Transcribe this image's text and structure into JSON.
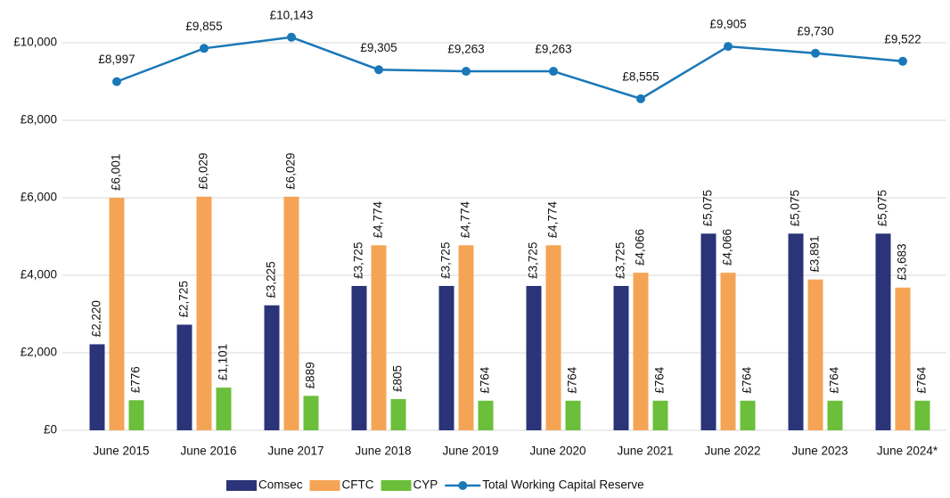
{
  "chart_data": {
    "type": "bar",
    "categories": [
      "June 2015",
      "June 2016",
      "June 2017",
      "June 2018",
      "June 2019",
      "June 2020",
      "June 2021",
      "June 2022",
      "June 2023",
      "June 2024*"
    ],
    "series": [
      {
        "name": "Comsec",
        "type": "bar",
        "color": "#2b3478",
        "values": [
          2220,
          2725,
          3225,
          3725,
          3725,
          3725,
          3725,
          5075,
          5075,
          5075
        ],
        "value_labels": [
          "£2,220",
          "£2,725",
          "£3,225",
          "£3,725",
          "£3,725",
          "£3,725",
          "£3,725",
          "£5,075",
          "£5,075",
          "£5,075"
        ]
      },
      {
        "name": "CFTC",
        "type": "bar",
        "color": "#f5a455",
        "values": [
          6001,
          6029,
          6029,
          4774,
          4774,
          4774,
          4066,
          4066,
          3891,
          3683
        ],
        "value_labels": [
          "£6,001",
          "£6,029",
          "£6,029",
          "£4,774",
          "£4,774",
          "£4,774",
          "£4,066",
          "£4,066",
          "£3,891",
          "£3,683"
        ]
      },
      {
        "name": "CYP",
        "type": "bar",
        "color": "#6bbf3a",
        "values": [
          776,
          1101,
          889,
          805,
          764,
          764,
          764,
          764,
          764,
          764
        ],
        "value_labels": [
          "£776",
          "£1,101",
          "£889",
          "£805",
          "£764",
          "£764",
          "£764",
          "£764",
          "£764",
          "£764"
        ]
      },
      {
        "name": "Total Working Capital Reserve",
        "type": "line",
        "color": "#1a78b8",
        "values": [
          8997,
          9855,
          10143,
          9305,
          9263,
          9263,
          8555,
          9905,
          9730,
          9522
        ],
        "value_labels": [
          "£8,997",
          "£9,855",
          "£10,143",
          "£9,305",
          "£9,263",
          "£9,263",
          "£8,555",
          "£9,905",
          "£9,730",
          "£9,522"
        ]
      }
    ],
    "ylim": [
      0,
      11000
    ],
    "yticks": [
      {
        "value": 0,
        "label": "£0"
      },
      {
        "value": 2000,
        "label": "£2,000"
      },
      {
        "value": 4000,
        "label": "£4,000"
      },
      {
        "value": 6000,
        "label": "£6,000"
      },
      {
        "value": 8000,
        "label": "£8,000"
      },
      {
        "value": 10000,
        "label": "£10,000"
      }
    ],
    "grid": true,
    "legend": "bottom"
  }
}
